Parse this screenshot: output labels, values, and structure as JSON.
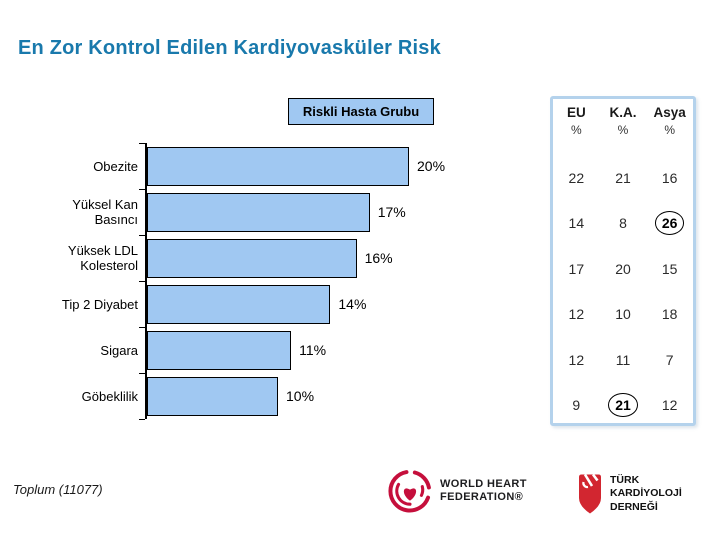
{
  "title": "En Zor Kontrol Edilen Kardiyovasküler Risk",
  "chart_data": {
    "type": "bar",
    "orientation": "horizontal",
    "title": "",
    "legend": "Riskli Hasta Grubu",
    "categories": [
      "Obezite",
      "Yüksel Kan Basıncı",
      "Yüksek LDL Kolesterol",
      "Tip 2 Diyabet",
      "Sigara",
      "Göbeklilik"
    ],
    "values": [
      20,
      17,
      16,
      14,
      11,
      10
    ],
    "unit": "%",
    "xlim": [
      0,
      22
    ],
    "bar_color": "#A0C8F2",
    "bar_border": "#000000",
    "grid": false,
    "legend_position": "top"
  },
  "table": {
    "columns": [
      "EU",
      "K.A.",
      "Asya"
    ],
    "unit": "%",
    "rows": [
      [
        22,
        21,
        16
      ],
      [
        14,
        8,
        26
      ],
      [
        17,
        20,
        15
      ],
      [
        12,
        10,
        18
      ],
      [
        12,
        11,
        7
      ],
      [
        9,
        21,
        12
      ]
    ],
    "circled_cells": [
      [
        1,
        2
      ],
      [
        5,
        1
      ]
    ],
    "border_color": "#B4D2EC"
  },
  "footnote": "Toplum (11077)",
  "logos": {
    "whf": {
      "lines": [
        "WORLD HEART",
        "FEDERATION®"
      ],
      "color": "#C50F3C"
    },
    "tkd": {
      "lines": [
        "TÜRK",
        "KARDİYOLOJİ",
        "DERNEĞİ"
      ],
      "color": "#D22630"
    }
  },
  "colors": {
    "title": "#1979AC",
    "bar_fill": "#A0C8F2",
    "table_border": "#B4D2EC"
  }
}
